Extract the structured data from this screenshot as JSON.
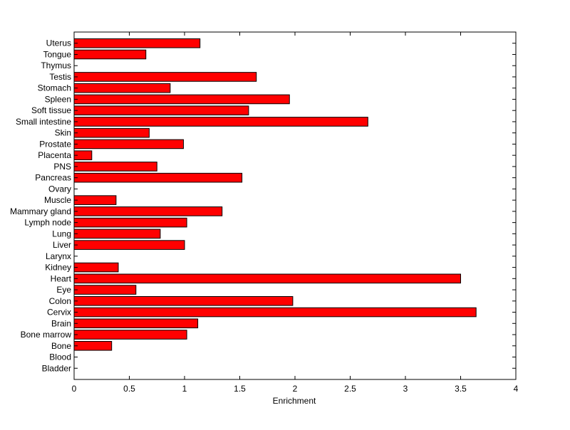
{
  "chart_data": {
    "type": "bar",
    "orientation": "horizontal",
    "xlabel": "Enrichment",
    "ylabel": "",
    "title": "",
    "xlim": [
      0,
      4
    ],
    "xticks": [
      "0",
      "0.5",
      "1",
      "1.5",
      "2",
      "2.5",
      "3",
      "3.5",
      "4"
    ],
    "grid": false,
    "legend": "none",
    "bar_color": "#ff0000",
    "categories": [
      "Uterus",
      "Tongue",
      "Thymus",
      "Testis",
      "Stomach",
      "Spleen",
      "Soft tissue",
      "Small intestine",
      "Skin",
      "Prostate",
      "Placenta",
      "PNS",
      "Pancreas",
      "Ovary",
      "Muscle",
      "Mammary gland",
      "Lymph node",
      "Lung",
      "Liver",
      "Larynx",
      "Kidney",
      "Heart",
      "Eye",
      "Colon",
      "Cervix",
      "Brain",
      "Bone marrow",
      "Bone",
      "Blood",
      "Bladder"
    ],
    "values": [
      1.14,
      0.65,
      0,
      1.65,
      0.87,
      1.95,
      1.58,
      2.66,
      0.68,
      0.99,
      0.16,
      0.75,
      1.52,
      0,
      0.38,
      1.34,
      1.02,
      0.78,
      1.0,
      0,
      0.4,
      3.5,
      0.56,
      1.98,
      3.64,
      1.12,
      1.02,
      0.34,
      0,
      0
    ]
  }
}
